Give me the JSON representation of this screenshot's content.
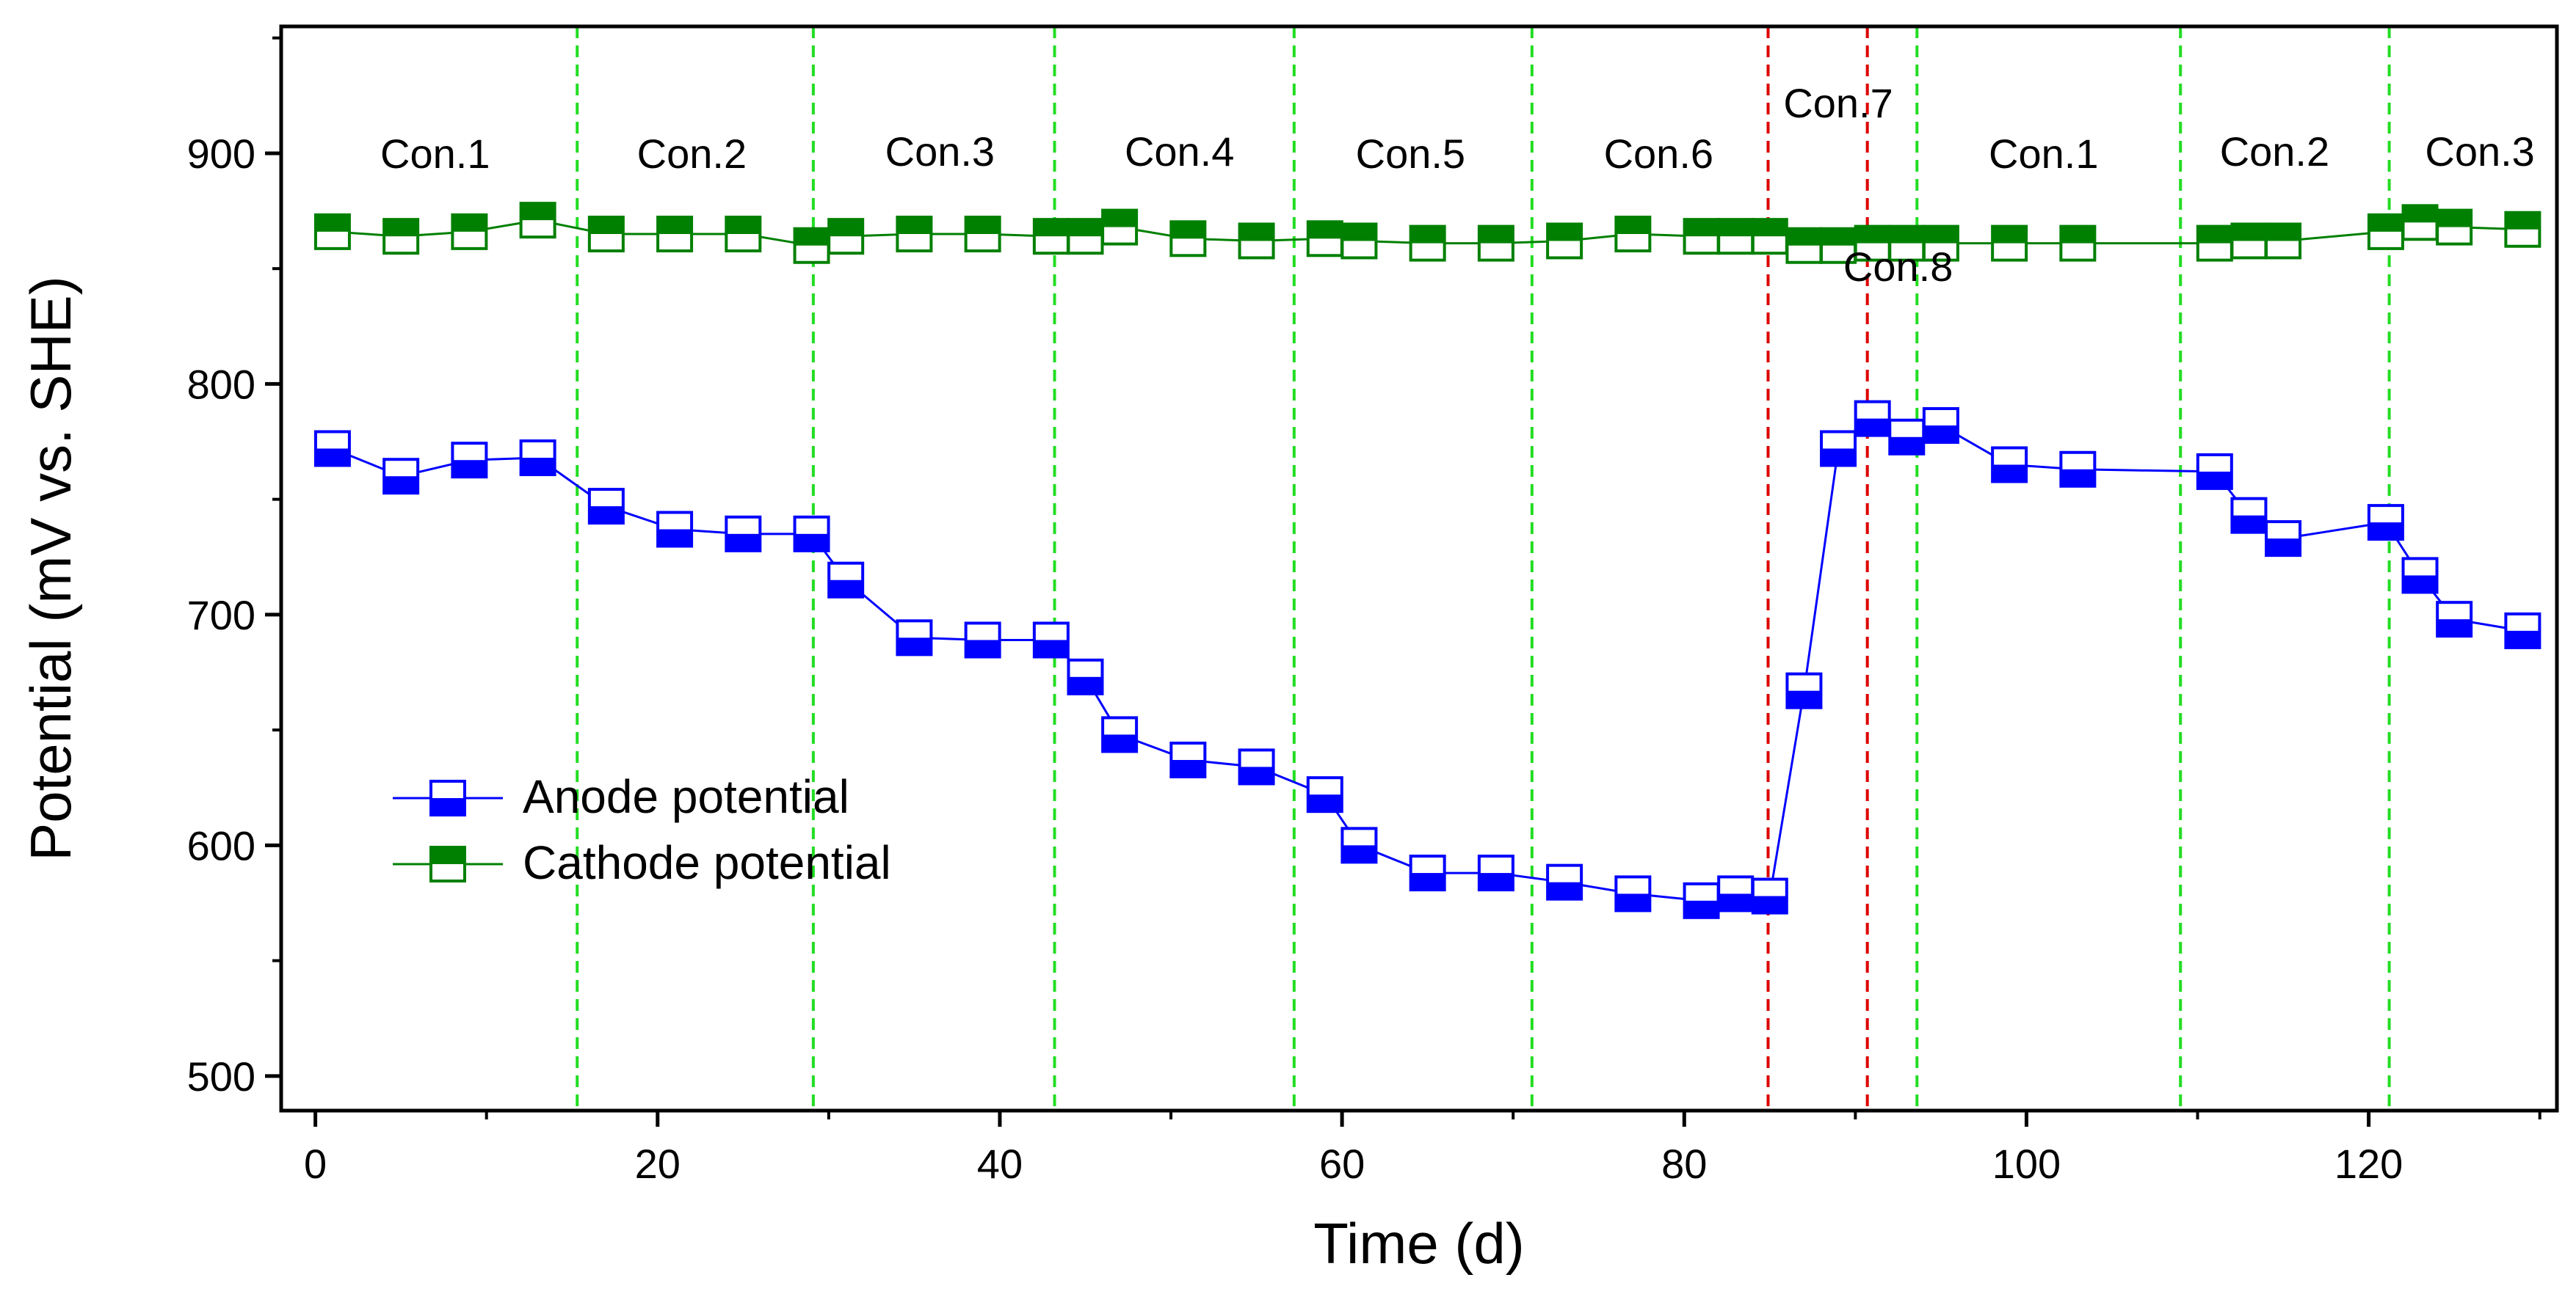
{
  "chart_data": {
    "type": "line",
    "title": "",
    "xlabel": "Time (d)",
    "ylabel": "Potential (mV vs. SHE)",
    "xlim": [
      -2,
      131
    ],
    "ylim": [
      485,
      955
    ],
    "xticks": [
      0,
      20,
      40,
      60,
      80,
      100,
      120
    ],
    "yticks": [
      500,
      600,
      700,
      800,
      900
    ],
    "colors": {
      "anode": "#0000FF",
      "cathode": "#008000",
      "green_divider": "#22DD22",
      "red_divider": "#DD0000"
    },
    "series": [
      {
        "name": "Anode potential",
        "color": "#0000FF",
        "x": [
          1,
          5,
          9,
          13,
          17,
          21,
          25,
          29,
          31,
          35,
          39,
          43,
          45,
          47,
          51,
          55,
          59,
          61,
          65,
          69,
          73,
          77,
          81,
          83,
          85,
          87,
          89,
          91,
          93,
          95,
          99,
          103,
          111,
          113,
          115,
          121,
          123,
          125,
          129
        ],
        "y": [
          772,
          760,
          767,
          768,
          747,
          737,
          735,
          735,
          715,
          690,
          689,
          689,
          673,
          648,
          637,
          634,
          622,
          600,
          588,
          588,
          584,
          579,
          576,
          579,
          578,
          667,
          772,
          785,
          777,
          782,
          765,
          763,
          762,
          743,
          733,
          740,
          717,
          698,
          693
        ]
      },
      {
        "name": "Cathode potential",
        "color": "#008000",
        "x": [
          1,
          5,
          9,
          13,
          17,
          21,
          25,
          29,
          31,
          35,
          39,
          43,
          45,
          47,
          51,
          55,
          59,
          61,
          65,
          69,
          73,
          77,
          81,
          83,
          85,
          87,
          89,
          91,
          93,
          95,
          99,
          103,
          111,
          113,
          115,
          121,
          123,
          125,
          129
        ],
        "y": [
          866,
          864,
          866,
          871,
          865,
          865,
          865,
          860,
          864,
          865,
          865,
          864,
          864,
          868,
          863,
          862,
          863,
          862,
          861,
          861,
          862,
          865,
          864,
          864,
          864,
          860,
          860,
          861,
          861,
          861,
          861,
          861,
          861,
          862,
          862,
          866,
          870,
          868,
          867
        ]
      }
    ],
    "dividers": [
      {
        "x": 15.3,
        "color": "green"
      },
      {
        "x": 29.1,
        "color": "green"
      },
      {
        "x": 43.2,
        "color": "green"
      },
      {
        "x": 57.2,
        "color": "green"
      },
      {
        "x": 71.1,
        "color": "green"
      },
      {
        "x": 84.9,
        "color": "red"
      },
      {
        "x": 90.7,
        "color": "red"
      },
      {
        "x": 93.6,
        "color": "green"
      },
      {
        "x": 109.0,
        "color": "green"
      },
      {
        "x": 121.2,
        "color": "green"
      }
    ],
    "annotations": [
      {
        "text": "Con.1",
        "x": 7,
        "y": 900
      },
      {
        "text": "Con.2",
        "x": 22,
        "y": 900
      },
      {
        "text": "Con.3",
        "x": 36.5,
        "y": 901
      },
      {
        "text": "Con.4",
        "x": 50.5,
        "y": 901
      },
      {
        "text": "Con.5",
        "x": 64,
        "y": 900
      },
      {
        "text": "Con.6",
        "x": 78.5,
        "y": 900
      },
      {
        "text": "Con.7",
        "x": 89,
        "y": 922
      },
      {
        "text": "Con.8",
        "x": 92.5,
        "y": 851
      },
      {
        "text": "Con.1",
        "x": 101,
        "y": 900
      },
      {
        "text": "Con.2",
        "x": 114.5,
        "y": 901
      },
      {
        "text": "Con.3",
        "x": 126.5,
        "y": 901
      }
    ],
    "legend": {
      "position": "bottom-left",
      "entries": [
        "Anode potential",
        "Cathode potential"
      ]
    }
  }
}
